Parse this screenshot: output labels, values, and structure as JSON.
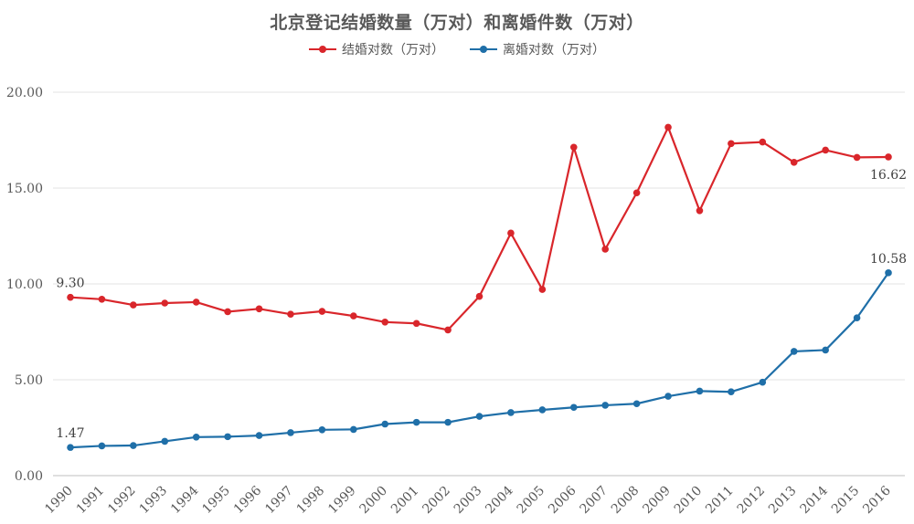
{
  "chart_data": {
    "type": "line",
    "title": "北京登记结婚数量（万对）和离婚件数（万对）",
    "categories": [
      "1990",
      "1991",
      "1992",
      "1993",
      "1994",
      "1995",
      "1996",
      "1997",
      "1998",
      "1999",
      "2000",
      "2001",
      "2002",
      "2003",
      "2004",
      "2005",
      "2006",
      "2007",
      "2008",
      "2009",
      "2010",
      "2011",
      "2012",
      "2013",
      "2014",
      "2015",
      "2016"
    ],
    "series": [
      {
        "name": "结婚对数（万对）",
        "color": "#d9262b",
        "values": [
          9.3,
          9.2,
          8.9,
          9.0,
          9.05,
          8.55,
          8.7,
          8.42,
          8.57,
          8.33,
          8.01,
          7.94,
          7.6,
          9.35,
          12.65,
          9.71,
          17.13,
          11.81,
          14.75,
          18.17,
          13.82,
          17.32,
          17.4,
          16.34,
          16.98,
          16.6,
          16.62
        ]
      },
      {
        "name": "离婚对数（万对）",
        "color": "#1f6fa8",
        "values": [
          1.47,
          1.55,
          1.57,
          1.79,
          2.01,
          2.03,
          2.09,
          2.24,
          2.39,
          2.41,
          2.69,
          2.78,
          2.78,
          3.09,
          3.29,
          3.43,
          3.56,
          3.67,
          3.75,
          4.14,
          4.41,
          4.37,
          4.87,
          6.48,
          6.55,
          8.23,
          10.58
        ]
      }
    ],
    "data_labels": [
      {
        "series": 0,
        "index": 0,
        "text": "9.30"
      },
      {
        "series": 0,
        "index": 26,
        "text": "16.62"
      },
      {
        "series": 1,
        "index": 0,
        "text": "1.47"
      },
      {
        "series": 1,
        "index": 26,
        "text": "10.58"
      }
    ],
    "ylim": [
      0,
      20
    ],
    "yticks": [
      "0.00",
      "5.00",
      "10.00",
      "15.00",
      "20.00"
    ],
    "ytick_values": [
      0,
      5,
      10,
      15,
      20
    ],
    "grid": true,
    "legend": "top-center",
    "xlabel": "",
    "ylabel": ""
  }
}
